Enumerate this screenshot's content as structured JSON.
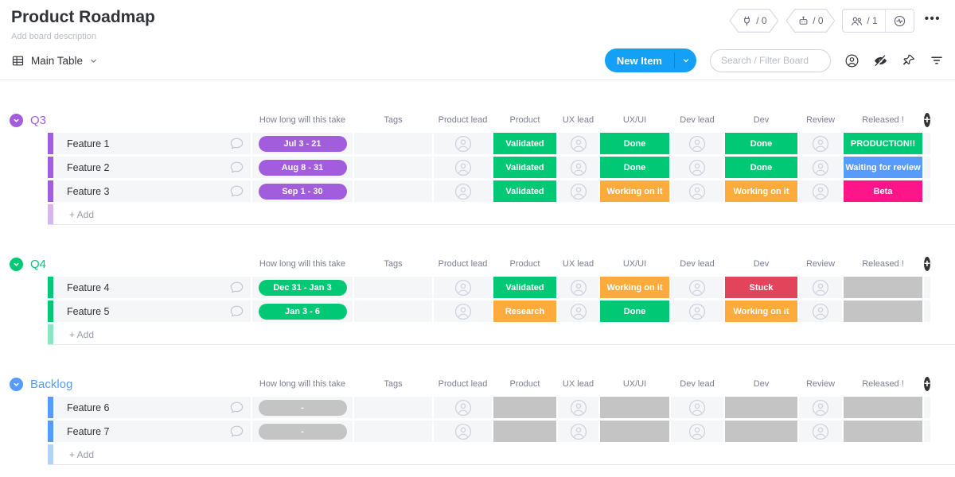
{
  "header": {
    "title": "Product Roadmap",
    "description": "Add board description",
    "integrations_count": "/ 0",
    "automations_count": "/ 0",
    "members_count": "/ 1",
    "menu_label": "•••"
  },
  "toolbar": {
    "view_label": "Main Table",
    "new_item_label": "New Item",
    "search_placeholder": "Search / Filter Board"
  },
  "columns": [
    "How long will this take",
    "Tags",
    "Product lead",
    "Product",
    "UX lead",
    "UX/UI",
    "Dev lead",
    "Dev",
    "Review",
    "Released !"
  ],
  "add_row_label": "+ Add",
  "colors": {
    "green": "#00c875",
    "orange": "#fdab3d",
    "red": "#e2445c",
    "blue": "#579bfc",
    "pink": "#ff158a",
    "gray": "#c4c4c4",
    "purple": "#a25ddc",
    "primary_blue": "#14a0f6"
  },
  "groups": [
    {
      "name": "Q3",
      "color": "#a25ddc",
      "rows": [
        {
          "name": "Feature 1",
          "timeline": "Jul 3 - 21",
          "product": [
            "Validated",
            "green"
          ],
          "uxui": [
            "Done",
            "green"
          ],
          "dev": [
            "Done",
            "green"
          ],
          "released": [
            "PRODUCTION!!",
            "green"
          ]
        },
        {
          "name": "Feature 2",
          "timeline": "Aug 8 - 31",
          "product": [
            "Validated",
            "green"
          ],
          "uxui": [
            "Done",
            "green"
          ],
          "dev": [
            "Done",
            "green"
          ],
          "released": [
            "Waiting for review",
            "blue"
          ]
        },
        {
          "name": "Feature 3",
          "timeline": "Sep 1 - 30",
          "product": [
            "Validated",
            "green"
          ],
          "uxui": [
            "Working on it",
            "orange"
          ],
          "dev": [
            "Working on it",
            "orange"
          ],
          "released": [
            "Beta",
            "pink"
          ]
        }
      ]
    },
    {
      "name": "Q4",
      "color": "#00c875",
      "rows": [
        {
          "name": "Feature 4",
          "timeline": "Dec 31 - Jan 3",
          "product": [
            "Validated",
            "green"
          ],
          "uxui": [
            "Working on it",
            "orange"
          ],
          "dev": [
            "Stuck",
            "red"
          ],
          "released": [
            "",
            "gray"
          ]
        },
        {
          "name": "Feature 5",
          "timeline": "Jan 3 - 6",
          "product": [
            "Research",
            "orange"
          ],
          "uxui": [
            "Done",
            "green"
          ],
          "dev": [
            "Working on it",
            "orange"
          ],
          "released": [
            "",
            "gray"
          ]
        }
      ]
    },
    {
      "name": "Backlog",
      "color": "#579bfc",
      "rows": [
        {
          "name": "Feature 6",
          "timeline": "-",
          "timeline_color": "gray",
          "product": [
            "",
            "gray"
          ],
          "uxui": [
            "",
            "gray"
          ],
          "dev": [
            "",
            "gray"
          ],
          "released": [
            "",
            "gray"
          ]
        },
        {
          "name": "Feature 7",
          "timeline": "-",
          "timeline_color": "gray",
          "product": [
            "",
            "gray"
          ],
          "uxui": [
            "",
            "gray"
          ],
          "dev": [
            "",
            "gray"
          ],
          "released": [
            "",
            "gray"
          ]
        }
      ]
    }
  ]
}
